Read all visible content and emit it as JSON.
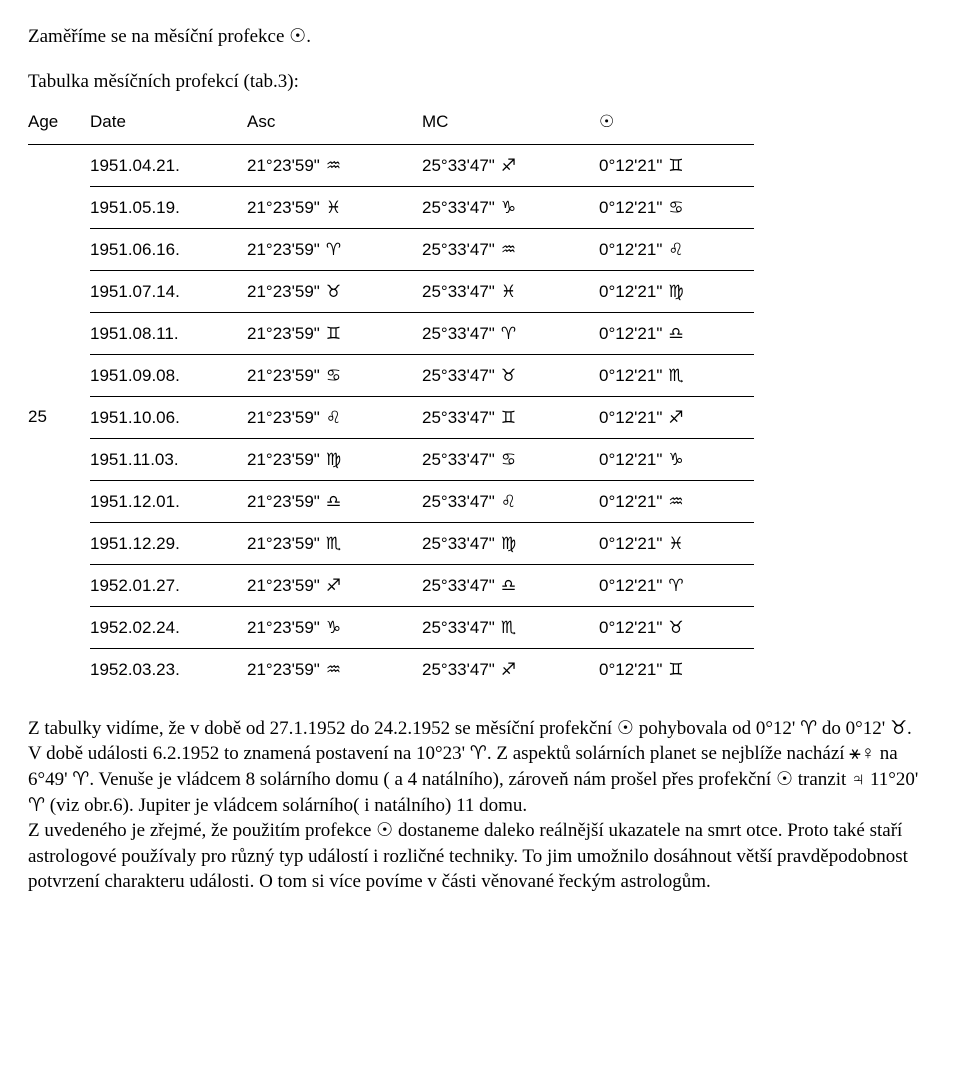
{
  "intro1_a": "Zaměříme se na měsíční profekce ",
  "intro1_b": ".",
  "caption": "Tabulka měsíčních profekcí (tab.3):",
  "headers": {
    "age": "Age",
    "date": "Date",
    "asc": "Asc",
    "mc": "MC"
  },
  "age_label": "25",
  "rows": [
    {
      "date": "1951.04.21.",
      "asc": "21°23'59\"",
      "asc_sym": "♒",
      "mc": "25°33'47\"",
      "mc_sym": "♐",
      "sun": "0°12'21\"",
      "sun_sym": "♊"
    },
    {
      "date": "1951.05.19.",
      "asc": "21°23'59\"",
      "asc_sym": "♓",
      "mc": "25°33'47\"",
      "mc_sym": "♑",
      "sun": "0°12'21\"",
      "sun_sym": "♋"
    },
    {
      "date": "1951.06.16.",
      "asc": "21°23'59\"",
      "asc_sym": "♈",
      "mc": "25°33'47\"",
      "mc_sym": "♒",
      "sun": "0°12'21\"",
      "sun_sym": "♌"
    },
    {
      "date": "1951.07.14.",
      "asc": "21°23'59\"",
      "asc_sym": "♉",
      "mc": "25°33'47\"",
      "mc_sym": "♓",
      "sun": "0°12'21\"",
      "sun_sym": "♍"
    },
    {
      "date": "1951.08.11.",
      "asc": "21°23'59\"",
      "asc_sym": "♊",
      "mc": "25°33'47\"",
      "mc_sym": "♈",
      "sun": "0°12'21\"",
      "sun_sym": "♎"
    },
    {
      "date": "1951.09.08.",
      "asc": "21°23'59\"",
      "asc_sym": "♋",
      "mc": "25°33'47\"",
      "mc_sym": "♉",
      "sun": "0°12'21\"",
      "sun_sym": "♏"
    },
    {
      "date": "1951.10.06.",
      "asc": "21°23'59\"",
      "asc_sym": "♌",
      "mc": "25°33'47\"",
      "mc_sym": "♊",
      "sun": "0°12'21\"",
      "sun_sym": "♐"
    },
    {
      "date": "1951.11.03.",
      "asc": "21°23'59\"",
      "asc_sym": "♍",
      "mc": "25°33'47\"",
      "mc_sym": "♋",
      "sun": "0°12'21\"",
      "sun_sym": "♑"
    },
    {
      "date": "1951.12.01.",
      "asc": "21°23'59\"",
      "asc_sym": "♎",
      "mc": "25°33'47\"",
      "mc_sym": "♌",
      "sun": "0°12'21\"",
      "sun_sym": "♒"
    },
    {
      "date": "1951.12.29.",
      "asc": "21°23'59\"",
      "asc_sym": "♏",
      "mc": "25°33'47\"",
      "mc_sym": "♍",
      "sun": "0°12'21\"",
      "sun_sym": "♓"
    },
    {
      "date": "1952.01.27.",
      "asc": "21°23'59\"",
      "asc_sym": "♐",
      "mc": "25°33'47\"",
      "mc_sym": "♎",
      "sun": "0°12'21\"",
      "sun_sym": "♈"
    },
    {
      "date": "1952.02.24.",
      "asc": "21°23'59\"",
      "asc_sym": "♑",
      "mc": "25°33'47\"",
      "mc_sym": "♏",
      "sun": "0°12'21\"",
      "sun_sym": "♉"
    },
    {
      "date": "1952.03.23.",
      "asc": "21°23'59\"",
      "asc_sym": "♒",
      "mc": "25°33'47\"",
      "mc_sym": "♐",
      "sun": "0°12'21\"",
      "sun_sym": "♊"
    }
  ],
  "sun_glyph": "☉",
  "aries_glyph": "♈",
  "taurus_glyph": "♉",
  "sextile_glyph": "⚹",
  "venus_glyph": "♀",
  "jupiter_glyph": "♃",
  "p": {
    "a": "Z tabulky vidíme, že v době od 27.1.1952 do 24.2.1952 se měsíční profekční ",
    "b": " pohybovala od 0°12' ",
    "c": " do 0°12' ",
    "d": ". V době události 6.2.1952 to znamená postavení na 10°23' ",
    "e": ". Z aspektů solárních planet se nejblíže nachází ",
    "f": " na 6°49' ",
    "g": ". Venuše je vládcem 8 solárního domu ( a 4 natálního), zároveň nám prošel přes profekční ",
    "h": " tranzit ",
    "i": " 11°20' ",
    "j": " (viz obr.6). Jupiter je vládcem solárního( i natálního) 11 domu.",
    "k": "Z uvedeného je zřejmé, že použitím profekce ",
    "l": " dostaneme daleko reálnější ukazatele na smrt otce. Proto také staří astrologové používaly pro různý typ událostí i rozličné techniky. To jim umožnilo dosáhnout větší pravděpodobnost potvrzení charakteru události. O tom si více povíme v části věnované řeckým astrologům."
  }
}
